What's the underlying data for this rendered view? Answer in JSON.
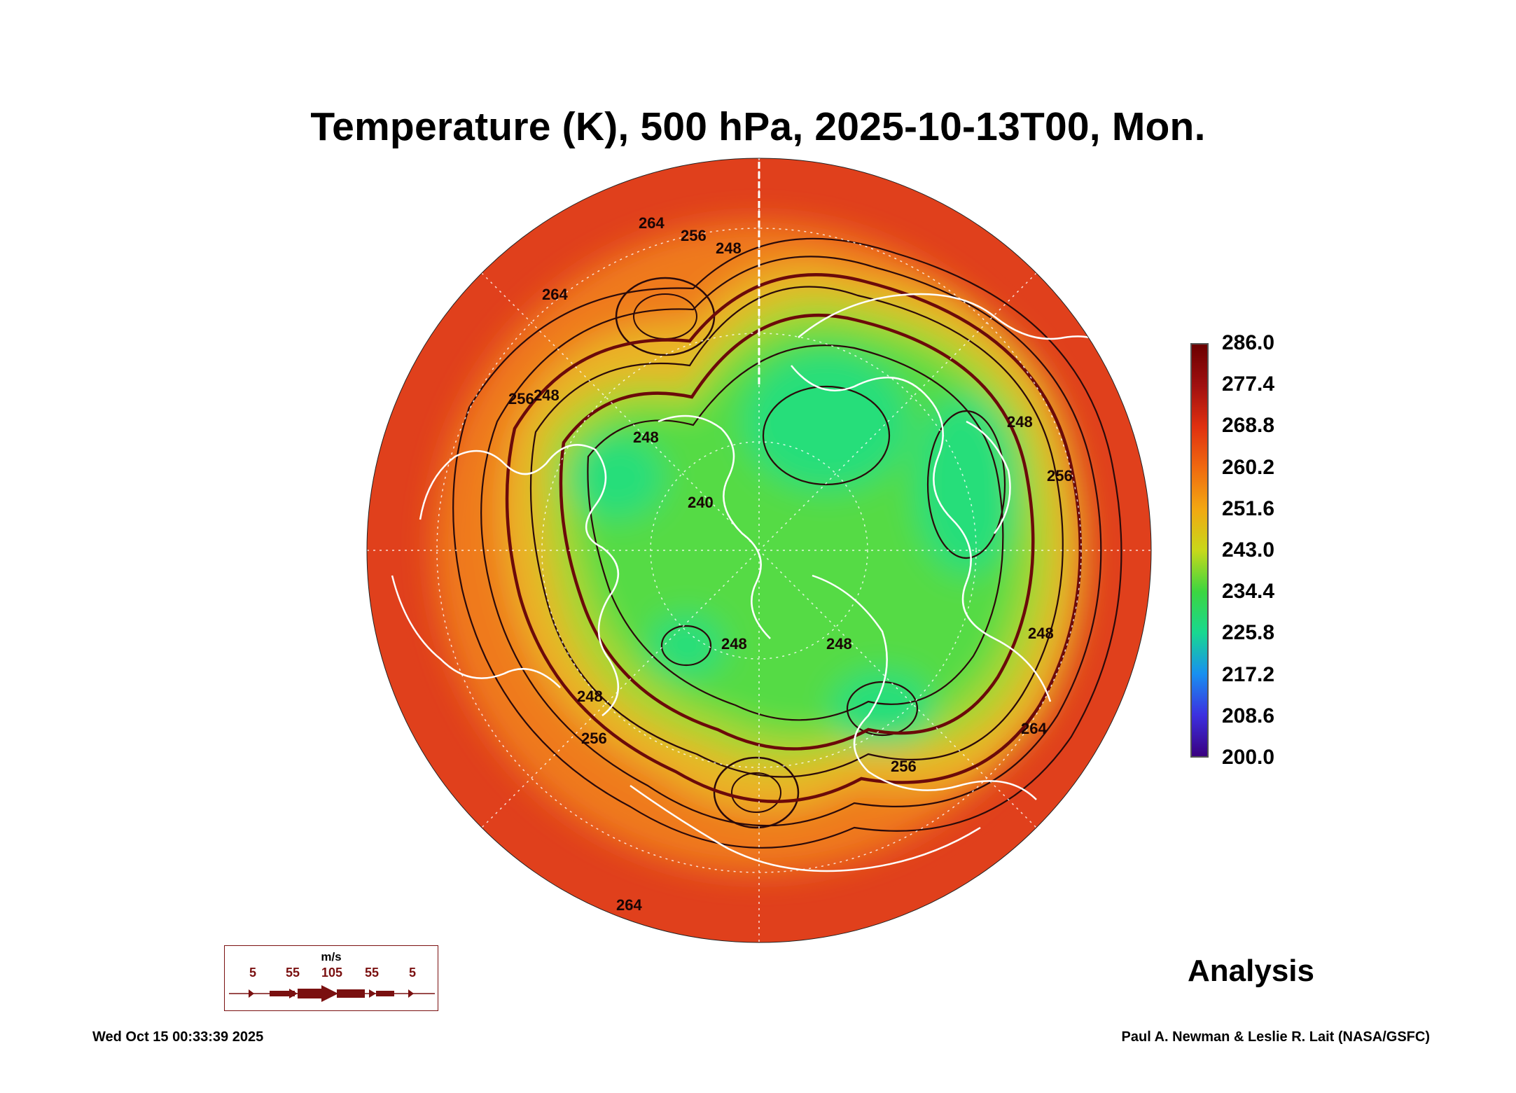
{
  "title": "Temperature (K), 500 hPa, 2025-10-13T00, Mon.",
  "colorbar": {
    "labels": [
      "286.0",
      "277.4",
      "268.8",
      "260.2",
      "251.6",
      "243.0",
      "234.4",
      "225.8",
      "217.2",
      "208.6",
      "200.0"
    ],
    "colors": [
      "#6b0000",
      "#a01010",
      "#e03010",
      "#f06a10",
      "#f2a812",
      "#c8d81a",
      "#3cd640",
      "#18d890",
      "#1890f0",
      "#3c30e0",
      "#3a0080"
    ]
  },
  "map": {
    "projection": "north polar stereographic",
    "contour_labels": [
      "264",
      "264",
      "256",
      "248",
      "256",
      "248",
      "248",
      "240",
      "256",
      "248",
      "248",
      "248",
      "248",
      "256",
      "248",
      "256",
      "264",
      "264"
    ],
    "colors": {
      "warm_edge": "#e0401c",
      "orange": "#ef7a1c",
      "yellow": "#e9b528",
      "yellow_green": "#a9d530",
      "green": "#55db45",
      "cold_core": "#25de7a",
      "contour": "#2a0a0a",
      "thick_contour": "#6b0a0a",
      "coastline": "#ffffff"
    }
  },
  "analysis_label": "Analysis",
  "wind_legend": {
    "unit": "m/s",
    "values": [
      "5",
      "55",
      "105",
      "55",
      "5"
    ],
    "color": "#7a1010"
  },
  "timestamp": "Wed Oct 15 00:33:39 2025",
  "credit": "Paul A. Newman & Leslie R. Lait (NASA/GSFC)"
}
